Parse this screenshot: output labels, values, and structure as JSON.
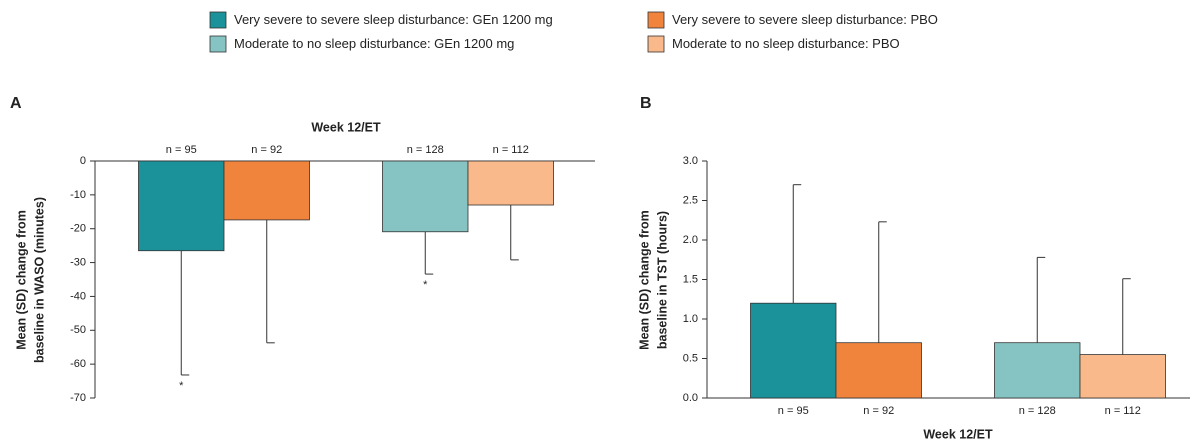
{
  "legend": [
    {
      "name": "Very severe to severe sleep disturbance: GEn 1200 mg",
      "color": "#1b9199"
    },
    {
      "name": "Very severe to severe sleep disturbance: PBO",
      "color": "#f0843c"
    },
    {
      "name": "Moderate to no sleep disturbance: GEn 1200 mg",
      "color": "#86c4c4"
    },
    {
      "name": "Moderate to no sleep disturbance: PBO",
      "color": "#f9b98a"
    }
  ],
  "chart_data": [
    {
      "type": "bar",
      "panel": "A",
      "title": "Week 12/ET",
      "title_position": "top",
      "ylabel": [
        "Mean (SD) change from",
        "baseline in WASO (minutes)"
      ],
      "values": [
        -26.5,
        -17.4,
        -20.9,
        -13
      ],
      "errors": [
        36.7,
        36.3,
        12.5,
        16.2
      ],
      "n_labels": [
        "n = 95",
        "n = 92",
        "n = 128",
        "n = 112"
      ],
      "n_position": "top",
      "value_annotations": [
        "*",
        null,
        "*",
        null
      ],
      "ylim": [
        -70,
        0
      ],
      "yticks": [
        0,
        -10,
        -20,
        -30,
        -40,
        -50,
        -60,
        -70
      ]
    },
    {
      "type": "bar",
      "panel": "B",
      "title": "Week 12/ET",
      "title_position": "bottom",
      "ylabel": [
        "Mean (SD) change from",
        "baseline in TST (hours)"
      ],
      "values": [
        1.2,
        0.7,
        0.7,
        0.55
      ],
      "errors": [
        1.5,
        1.53,
        1.08,
        0.96
      ],
      "n_labels": [
        "n = 95",
        "n = 92",
        "n = 128",
        "n = 112"
      ],
      "n_position": "bottom",
      "value_annotations": [
        null,
        null,
        null,
        null
      ],
      "ylim": [
        0,
        3
      ],
      "yticks": [
        {
          "value": 0,
          "label": "0.0"
        },
        {
          "value": 0.5,
          "label": "0.5"
        },
        {
          "value": 1,
          "label": "1.0"
        },
        {
          "value": 1.5,
          "label": "1.5"
        },
        {
          "value": 2,
          "label": "2.0"
        },
        {
          "value": 2.5,
          "label": "2.5"
        },
        {
          "value": 3,
          "label": "3.0"
        }
      ]
    }
  ]
}
